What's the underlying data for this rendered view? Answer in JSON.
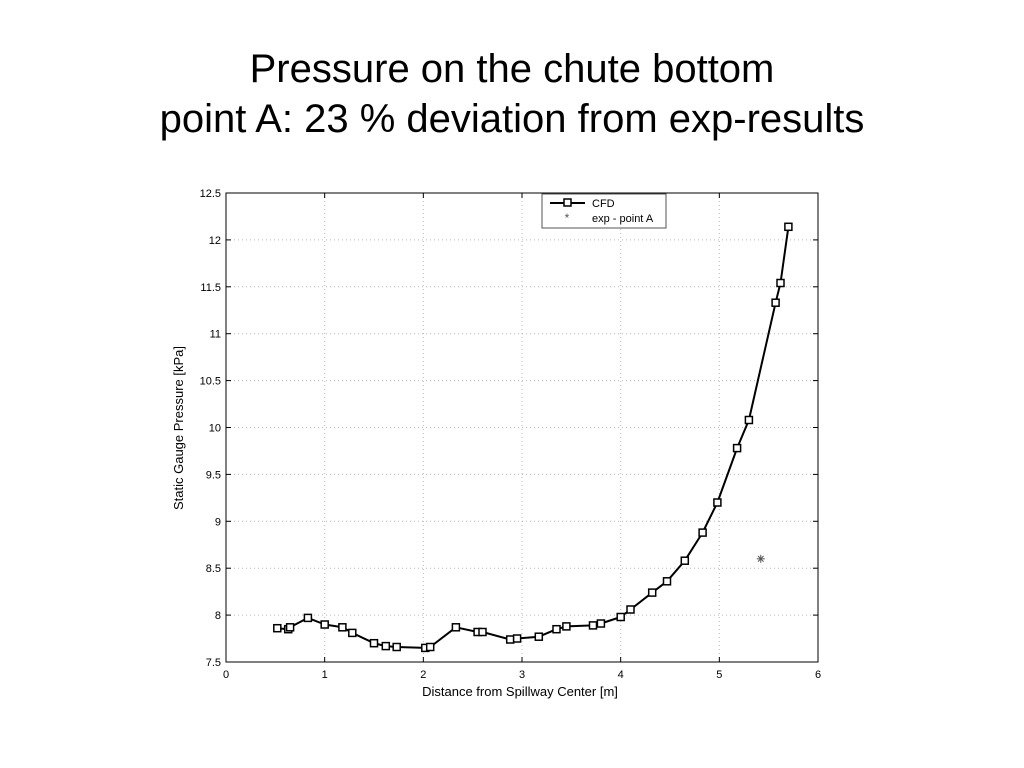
{
  "slide": {
    "title_line1": "Pressure on the chute bottom",
    "title_line2": "point A: 23 % deviation from exp-results"
  },
  "chart_data": {
    "type": "line",
    "title": "",
    "xlabel": "Distance from Spillway Center [m]",
    "ylabel": "Static Gauge Pressure [kPa]",
    "xlim": [
      0,
      6
    ],
    "ylim": [
      7.5,
      12.5
    ],
    "xticks": [
      0,
      1,
      2,
      3,
      4,
      5,
      6
    ],
    "xtick_labels": [
      "0",
      "1",
      "2",
      "3",
      "4",
      "5",
      "6"
    ],
    "yticks": [
      7.5,
      8,
      8.5,
      9,
      9.5,
      10,
      10.5,
      11,
      11.5,
      12,
      12.5
    ],
    "ytick_labels": [
      "7.5",
      "8",
      "8.5",
      "9",
      "9.5",
      "10",
      "10.5",
      "11",
      "11.5",
      "12",
      "12.5"
    ],
    "grid": true,
    "legend": {
      "position": "top-right",
      "entries": [
        "CFD",
        "exp - point A"
      ]
    },
    "series": [
      {
        "name": "CFD",
        "marker": "square",
        "line": "solid",
        "x": [
          0.52,
          0.63,
          0.65,
          0.83,
          1.0,
          1.18,
          1.28,
          1.5,
          1.62,
          1.73,
          2.02,
          2.07,
          2.33,
          2.55,
          2.6,
          2.88,
          2.95,
          3.17,
          3.35,
          3.45,
          3.72,
          3.8,
          4.0,
          4.1,
          4.32,
          4.47,
          4.65,
          4.83,
          4.98,
          5.18,
          5.3,
          5.57,
          5.62,
          5.7
        ],
        "y": [
          7.86,
          7.85,
          7.87,
          7.97,
          7.9,
          7.87,
          7.81,
          7.7,
          7.67,
          7.66,
          7.65,
          7.66,
          7.87,
          7.82,
          7.82,
          7.74,
          7.75,
          7.77,
          7.85,
          7.88,
          7.89,
          7.91,
          7.98,
          8.06,
          8.24,
          8.36,
          8.58,
          8.88,
          9.2,
          9.78,
          10.08,
          11.33,
          11.54,
          12.14
        ]
      },
      {
        "name": "exp - point A",
        "marker": "asterisk",
        "line": "none",
        "x": [
          5.42
        ],
        "y": [
          8.6
        ]
      }
    ]
  }
}
